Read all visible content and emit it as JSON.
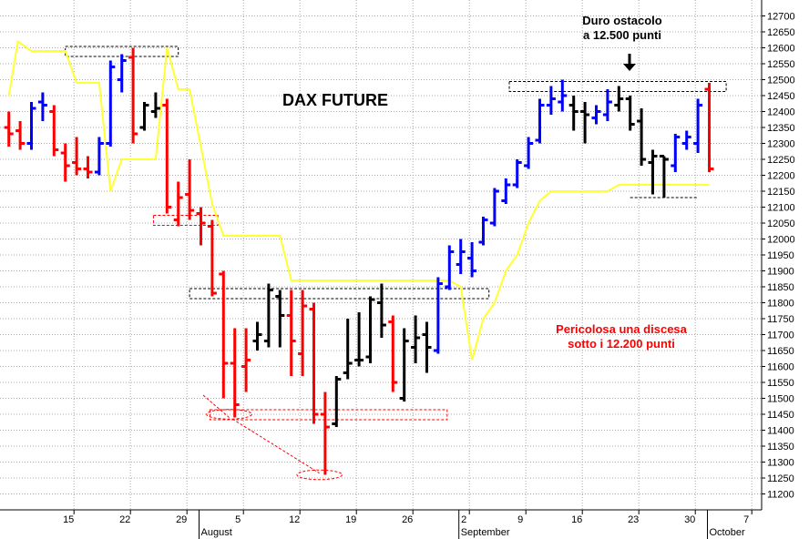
{
  "chart_data": {
    "type": "ohlc-bar",
    "title": "DAX FUTURE",
    "ylim": [
      11150,
      12750
    ],
    "y_ticks": [
      11200,
      11250,
      11300,
      11350,
      11400,
      11450,
      11500,
      11550,
      11600,
      11650,
      11700,
      11750,
      11800,
      11850,
      11900,
      11950,
      12000,
      12050,
      12100,
      12150,
      12200,
      12250,
      12300,
      12350,
      12400,
      12450,
      12500,
      12550,
      12600,
      12650,
      12700
    ],
    "x_tick_labels": [
      {
        "label": "15",
        "index": 5
      },
      {
        "label": "22",
        "index": 10
      },
      {
        "label": "29",
        "index": 15
      },
      {
        "label": "5",
        "index": 20
      },
      {
        "label": "12",
        "index": 25
      },
      {
        "label": "19",
        "index": 30
      },
      {
        "label": "26",
        "index": 35
      },
      {
        "label": "2",
        "index": 40
      },
      {
        "label": "9",
        "index": 45
      },
      {
        "label": "16",
        "index": 50
      },
      {
        "label": "23",
        "index": 55
      },
      {
        "label": "30",
        "index": 60
      },
      {
        "label": "7",
        "index": 65
      }
    ],
    "months": [
      {
        "label": "August",
        "index": 17
      },
      {
        "label": "September",
        "index": 40
      },
      {
        "label": "October",
        "index": 62
      }
    ],
    "bars": [
      {
        "i": 0,
        "h": 12400,
        "l": 12290,
        "o": 12350,
        "c": 12330,
        "col": "red"
      },
      {
        "i": 1,
        "h": 12370,
        "l": 12280,
        "o": 12340,
        "c": 12300,
        "col": "red"
      },
      {
        "i": 2,
        "h": 12430,
        "l": 12280,
        "o": 12300,
        "c": 12410,
        "col": "blue"
      },
      {
        "i": 3,
        "h": 12460,
        "l": 12370,
        "o": 12430,
        "c": 12420,
        "col": "blue"
      },
      {
        "i": 4,
        "h": 12420,
        "l": 12260,
        "o": 12400,
        "c": 12280,
        "col": "red"
      },
      {
        "i": 5,
        "h": 12300,
        "l": 12180,
        "o": 12270,
        "c": 12230,
        "col": "red"
      },
      {
        "i": 6,
        "h": 12320,
        "l": 12200,
        "o": 12240,
        "c": 12220,
        "col": "red"
      },
      {
        "i": 7,
        "h": 12260,
        "l": 12190,
        "o": 12220,
        "c": 12210,
        "col": "red"
      },
      {
        "i": 8,
        "h": 12320,
        "l": 12200,
        "o": 12210,
        "c": 12300,
        "col": "blue"
      },
      {
        "i": 9,
        "h": 12560,
        "l": 12290,
        "o": 12300,
        "c": 12540,
        "col": "blue"
      },
      {
        "i": 10,
        "h": 12580,
        "l": 12460,
        "o": 12500,
        "c": 12560,
        "col": "blue"
      },
      {
        "i": 11,
        "h": 12600,
        "l": 12300,
        "o": 12570,
        "c": 12330,
        "col": "red"
      },
      {
        "i": 12,
        "h": 12430,
        "l": 12340,
        "o": 12350,
        "c": 12420,
        "col": "black"
      },
      {
        "i": 13,
        "h": 12460,
        "l": 12380,
        "o": 12400,
        "c": 12410,
        "col": "black"
      },
      {
        "i": 14,
        "h": 12440,
        "l": 12080,
        "o": 12420,
        "c": 12100,
        "col": "red"
      },
      {
        "i": 15,
        "h": 12180,
        "l": 12040,
        "o": 12060,
        "c": 12130,
        "col": "red"
      },
      {
        "i": 16,
        "h": 12250,
        "l": 12060,
        "o": 12140,
        "c": 12090,
        "col": "red"
      },
      {
        "i": 17,
        "h": 12100,
        "l": 11980,
        "o": 12080,
        "c": 12050,
        "col": "red"
      },
      {
        "i": 18,
        "h": 12060,
        "l": 11820,
        "o": 12040,
        "c": 11830,
        "col": "red"
      },
      {
        "i": 19,
        "h": 11900,
        "l": 11500,
        "o": 11890,
        "c": 11610,
        "col": "red"
      },
      {
        "i": 20,
        "h": 11720,
        "l": 11440,
        "o": 11610,
        "c": 11480,
        "col": "red"
      },
      {
        "i": 21,
        "h": 11720,
        "l": 11520,
        "o": 11600,
        "c": 11620,
        "col": "red"
      },
      {
        "i": 22,
        "h": 11740,
        "l": 11650,
        "o": 11680,
        "c": 11700,
        "col": "black"
      },
      {
        "i": 23,
        "h": 11860,
        "l": 11660,
        "o": 11680,
        "c": 11840,
        "col": "black"
      },
      {
        "i": 24,
        "h": 11840,
        "l": 11660,
        "o": 11820,
        "c": 11760,
        "col": "black"
      },
      {
        "i": 25,
        "h": 11840,
        "l": 11570,
        "o": 11760,
        "c": 11680,
        "col": "red"
      },
      {
        "i": 26,
        "h": 11840,
        "l": 11570,
        "o": 11640,
        "c": 11790,
        "col": "red"
      },
      {
        "i": 27,
        "h": 11800,
        "l": 11420,
        "o": 11780,
        "c": 11450,
        "col": "red"
      },
      {
        "i": 28,
        "h": 11520,
        "l": 11260,
        "o": 11450,
        "c": 11410,
        "col": "red"
      },
      {
        "i": 29,
        "h": 11570,
        "l": 11410,
        "o": 11420,
        "c": 11560,
        "col": "black"
      },
      {
        "i": 30,
        "h": 11750,
        "l": 11560,
        "o": 11580,
        "c": 11610,
        "col": "black"
      },
      {
        "i": 31,
        "h": 11770,
        "l": 11600,
        "o": 11620,
        "c": 11620,
        "col": "black"
      },
      {
        "i": 32,
        "h": 11820,
        "l": 11610,
        "o": 11630,
        "c": 11810,
        "col": "black"
      },
      {
        "i": 33,
        "h": 11860,
        "l": 11690,
        "o": 11800,
        "c": 11730,
        "col": "black"
      },
      {
        "i": 34,
        "h": 11760,
        "l": 11520,
        "o": 11740,
        "c": 11550,
        "col": "red"
      },
      {
        "i": 35,
        "h": 11720,
        "l": 11490,
        "o": 11500,
        "c": 11680,
        "col": "black"
      },
      {
        "i": 36,
        "h": 11760,
        "l": 11610,
        "o": 11660,
        "c": 11690,
        "col": "black"
      },
      {
        "i": 37,
        "h": 11740,
        "l": 11580,
        "o": 11700,
        "c": 11660,
        "col": "black"
      },
      {
        "i": 38,
        "h": 11880,
        "l": 11640,
        "o": 11650,
        "c": 11860,
        "col": "blue"
      },
      {
        "i": 39,
        "h": 11980,
        "l": 11840,
        "o": 11850,
        "c": 11960,
        "col": "blue"
      },
      {
        "i": 40,
        "h": 12000,
        "l": 11890,
        "o": 11920,
        "c": 11960,
        "col": "blue"
      },
      {
        "i": 41,
        "h": 11990,
        "l": 11880,
        "o": 11940,
        "c": 11900,
        "col": "blue"
      },
      {
        "i": 42,
        "h": 12070,
        "l": 11980,
        "o": 11990,
        "c": 12060,
        "col": "blue"
      },
      {
        "i": 43,
        "h": 12160,
        "l": 12040,
        "o": 12050,
        "c": 12150,
        "col": "blue"
      },
      {
        "i": 44,
        "h": 12190,
        "l": 12110,
        "o": 12120,
        "c": 12170,
        "col": "blue"
      },
      {
        "i": 45,
        "h": 12250,
        "l": 12160,
        "o": 12170,
        "c": 12240,
        "col": "blue"
      },
      {
        "i": 46,
        "h": 12320,
        "l": 12220,
        "o": 12230,
        "c": 12300,
        "col": "blue"
      },
      {
        "i": 47,
        "h": 12440,
        "l": 12300,
        "o": 12310,
        "c": 12420,
        "col": "blue"
      },
      {
        "i": 48,
        "h": 12480,
        "l": 12390,
        "o": 12420,
        "c": 12440,
        "col": "blue"
      },
      {
        "i": 49,
        "h": 12500,
        "l": 12400,
        "o": 12430,
        "c": 12450,
        "col": "blue"
      },
      {
        "i": 50,
        "h": 12450,
        "l": 12340,
        "o": 12420,
        "c": 12400,
        "col": "black"
      },
      {
        "i": 51,
        "h": 12430,
        "l": 12300,
        "o": 12400,
        "c": 12390,
        "col": "black"
      },
      {
        "i": 52,
        "h": 12420,
        "l": 12360,
        "o": 12380,
        "c": 12400,
        "col": "blue"
      },
      {
        "i": 53,
        "h": 12470,
        "l": 12370,
        "o": 12390,
        "c": 12430,
        "col": "blue"
      },
      {
        "i": 54,
        "h": 12480,
        "l": 12400,
        "o": 12420,
        "c": 12440,
        "col": "black"
      },
      {
        "i": 55,
        "h": 12450,
        "l": 12340,
        "o": 12440,
        "c": 12360,
        "col": "black"
      },
      {
        "i": 56,
        "h": 12410,
        "l": 12230,
        "o": 12370,
        "c": 12250,
        "col": "black"
      },
      {
        "i": 57,
        "h": 12280,
        "l": 12140,
        "o": 12240,
        "c": 12260,
        "col": "black"
      },
      {
        "i": 58,
        "h": 12260,
        "l": 12130,
        "o": 12260,
        "c": 12250,
        "col": "black"
      },
      {
        "i": 59,
        "h": 12330,
        "l": 12210,
        "o": 12230,
        "c": 12320,
        "col": "blue"
      },
      {
        "i": 60,
        "h": 12340,
        "l": 12280,
        "o": 12300,
        "c": 12320,
        "col": "blue"
      },
      {
        "i": 61,
        "h": 12440,
        "l": 12270,
        "o": 12300,
        "c": 12420,
        "col": "blue"
      },
      {
        "i": 62,
        "h": 12490,
        "l": 12210,
        "o": 12470,
        "c": 12220,
        "col": "red"
      }
    ],
    "yellow_line": [
      {
        "x": 0,
        "y": 12450
      },
      {
        "x": 0.8,
        "y": 12620
      },
      {
        "x": 2,
        "y": 12590
      },
      {
        "x": 5,
        "y": 12590
      },
      {
        "x": 6,
        "y": 12490
      },
      {
        "x": 8,
        "y": 12490
      },
      {
        "x": 9,
        "y": 12150
      },
      {
        "x": 10,
        "y": 12250
      },
      {
        "x": 13,
        "y": 12250
      },
      {
        "x": 14,
        "y": 12600
      },
      {
        "x": 15,
        "y": 12470
      },
      {
        "x": 16,
        "y": 12470
      },
      {
        "x": 18,
        "y": 12110
      },
      {
        "x": 19,
        "y": 12010
      },
      {
        "x": 24,
        "y": 12010
      },
      {
        "x": 25,
        "y": 11870
      },
      {
        "x": 39,
        "y": 11870
      },
      {
        "x": 40,
        "y": 11850
      },
      {
        "x": 41,
        "y": 11620
      },
      {
        "x": 42,
        "y": 11750
      },
      {
        "x": 43,
        "y": 11800
      },
      {
        "x": 44,
        "y": 11900
      },
      {
        "x": 45,
        "y": 11950
      },
      {
        "x": 46,
        "y": 12050
      },
      {
        "x": 47,
        "y": 12120
      },
      {
        "x": 48,
        "y": 12150
      },
      {
        "x": 53,
        "y": 12150
      },
      {
        "x": 54,
        "y": 12170
      },
      {
        "x": 62,
        "y": 12170
      }
    ],
    "zones": [
      {
        "x1": 5,
        "x2": 15,
        "y": 12590,
        "color": "black",
        "type": "band"
      },
      {
        "x1": 44.3,
        "x2": 63.5,
        "y": 12480,
        "color": "black",
        "type": "band"
      },
      {
        "x1": 16,
        "x2": 42.5,
        "y": 11830,
        "color": "black",
        "type": "band"
      },
      {
        "x1": 12.8,
        "x2": 18.5,
        "y": 12060,
        "color": "red",
        "type": "band"
      },
      {
        "x1": 17.8,
        "x2": 38.8,
        "y": 11450,
        "color": "red",
        "type": "band"
      },
      {
        "x1": 55,
        "x2": 61,
        "y": 12130,
        "color": "black",
        "type": "line"
      }
    ],
    "ellipses": [
      {
        "cx": 19.5,
        "cy": 11450,
        "rx": 2,
        "ry": 15,
        "color": "red"
      },
      {
        "cx": 27.5,
        "cy": 11260,
        "rx": 2,
        "ry": 15,
        "color": "red"
      }
    ],
    "dashed_lines": [
      {
        "x1": 17.2,
        "y1": 11510,
        "x2": 19.5,
        "y2": 11440
      },
      {
        "x1": 19.8,
        "y1": 11435,
        "x2": 27.5,
        "y2": 11265
      }
    ],
    "annotations": {
      "obstacle_line1": "Duro ostacolo",
      "obstacle_line2": "a 12.500 punti",
      "danger_line1": "Pericolosa una discesa",
      "danger_line2": "sotto i 12.200 punti"
    },
    "colors": {
      "red": "#ff0000",
      "blue": "#0000ff",
      "black": "#000000",
      "yellow": "#ffff33",
      "grid": "#a8a8a8"
    },
    "grid": true
  }
}
